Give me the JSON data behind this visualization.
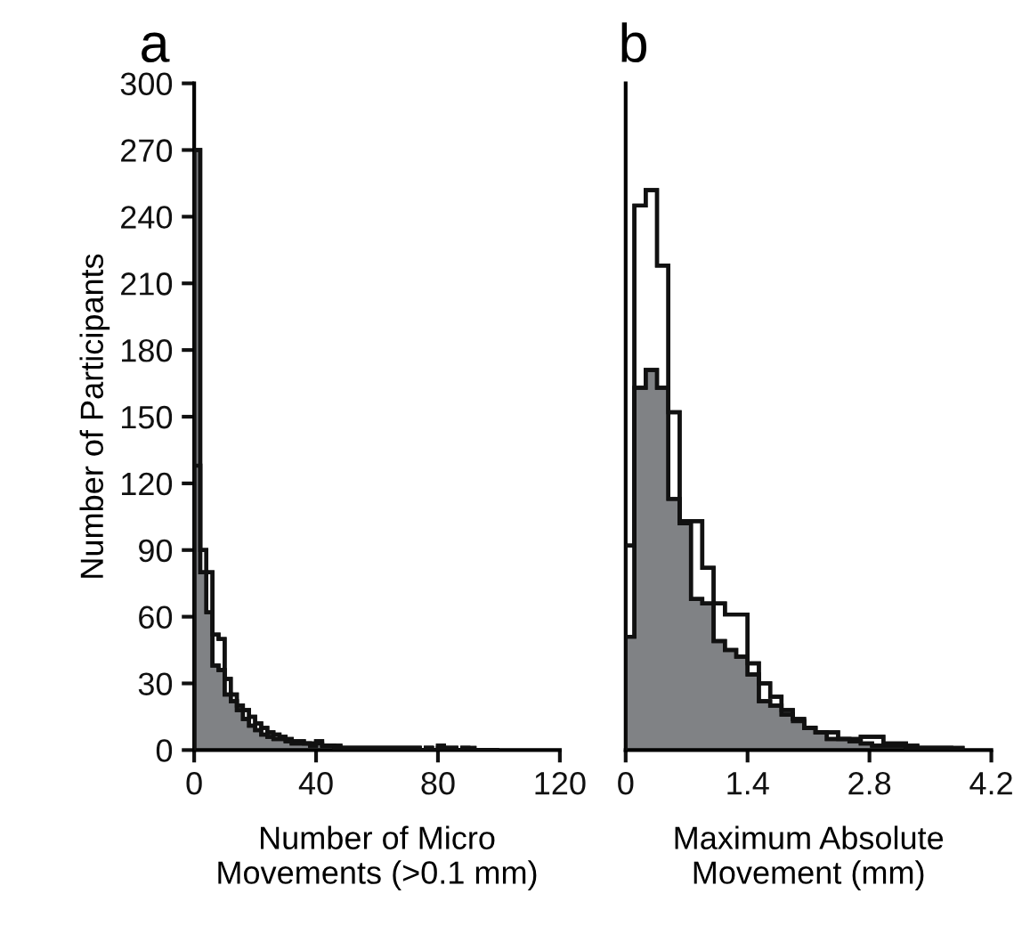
{
  "chart_data": [
    {
      "type": "histogram",
      "title": "a",
      "xlabel": "Number of Micro\nMovements (>0.1 mm)",
      "ylabel": "Number of Participants",
      "bins": [
        0,
        2,
        4,
        6,
        8,
        10,
        12,
        14,
        16,
        18,
        20,
        22,
        24,
        26,
        28,
        30,
        32,
        34,
        36,
        38,
        40,
        42,
        44,
        46,
        48,
        50,
        52,
        54,
        56,
        58,
        60,
        62,
        64,
        66,
        68,
        70,
        72,
        74,
        76,
        78,
        80,
        82,
        84,
        86,
        88,
        90,
        92,
        94,
        96,
        98,
        100
      ],
      "series": [
        {
          "color": "#ffffff",
          "values": [
            128,
            90,
            80,
            52,
            50,
            32,
            25,
            20,
            18,
            15,
            12,
            10,
            8,
            7,
            6,
            5,
            4,
            4,
            3,
            3,
            3,
            2,
            2,
            2,
            1,
            1,
            1,
            1,
            1,
            1,
            1,
            1,
            1,
            1,
            1,
            1,
            1,
            0,
            1,
            0,
            2,
            1,
            1,
            0,
            1,
            1,
            0,
            0,
            0,
            0
          ]
        },
        {
          "color": "#808285",
          "values": [
            270,
            80,
            62,
            38,
            36,
            25,
            22,
            18,
            14,
            11,
            9,
            7,
            6,
            5,
            5,
            4,
            3,
            3,
            3,
            2,
            4,
            2,
            2,
            1,
            1,
            1,
            1,
            1,
            1,
            1,
            1,
            1,
            1,
            1,
            1,
            1,
            1,
            0,
            1,
            0,
            1,
            1,
            1,
            0,
            1,
            0,
            0,
            0,
            0,
            0
          ]
        }
      ],
      "xlim": [
        0,
        120
      ],
      "xticks": [
        0,
        40,
        80,
        120
      ],
      "ylim": [
        0,
        300
      ],
      "yticks": [
        0,
        30,
        60,
        90,
        120,
        150,
        180,
        210,
        240,
        270,
        300
      ]
    },
    {
      "type": "histogram",
      "title": "b",
      "xlabel": "Maximum Absolute\nMovement (mm)",
      "bins": [
        0,
        0.1,
        0.23,
        0.36,
        0.49,
        0.62,
        0.75,
        0.88,
        1.01,
        1.14,
        1.27,
        1.4,
        1.53,
        1.66,
        1.79,
        1.92,
        2.05,
        2.18,
        2.31,
        2.44,
        2.57,
        2.7,
        2.83,
        2.96,
        3.09,
        3.22,
        3.35,
        3.48,
        3.61,
        3.74,
        3.87
      ],
      "series": [
        {
          "color": "#ffffff",
          "values": [
            92,
            245,
            252,
            218,
            152,
            103,
            103,
            82,
            66,
            61,
            61,
            39,
            30,
            24,
            18,
            13,
            10,
            8,
            8,
            5,
            5,
            6,
            6,
            3,
            3,
            2,
            1,
            1,
            1,
            1
          ]
        },
        {
          "color": "#808285",
          "values": [
            51,
            163,
            171,
            163,
            113,
            102,
            68,
            66,
            49,
            45,
            42,
            34,
            22,
            20,
            16,
            14,
            10,
            8,
            5,
            5,
            4,
            3,
            2,
            2,
            2,
            1,
            1,
            1,
            1,
            0
          ]
        }
      ],
      "xlim": [
        0,
        4.2
      ],
      "xticks": [
        0,
        1.4,
        2.8,
        4.2
      ],
      "ylim": [
        0,
        300
      ],
      "tick_labels": "x"
    }
  ]
}
